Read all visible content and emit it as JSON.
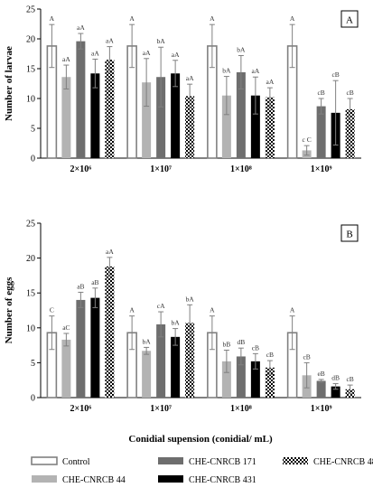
{
  "xlabel": "Conidial supension (conidial/ mL)",
  "colors": {
    "control": "#ffffff",
    "che44": "#b3b3b3",
    "che171": "#6e6e6e",
    "che431": "#000000",
    "che485": "checker",
    "outline": "#808080",
    "error_bar": "#808080"
  },
  "legend": [
    {
      "key": "control",
      "label": "Control"
    },
    {
      "key": "che44",
      "label": "CHE-CNRCB 44"
    },
    {
      "key": "che171",
      "label": "CHE-CNRCB 171"
    },
    {
      "key": "che431",
      "label": "CHE-CNRCB 431"
    },
    {
      "key": "che485",
      "label": "CHE-CNRCB 485"
    }
  ],
  "chart_data": [
    {
      "type": "bar",
      "panel": "A",
      "ylabel": "Number of larvae",
      "ylim": [
        0,
        25
      ],
      "yticks": [
        0,
        5,
        10,
        15,
        20,
        25
      ],
      "categories": [
        "2×10⁶",
        "1×10⁷",
        "1×10⁸",
        "1×10⁹"
      ],
      "series": [
        {
          "name": "Control",
          "key": "control",
          "values": [
            18.8,
            18.8,
            18.8,
            18.8
          ],
          "errors": [
            3.6,
            3.6,
            3.6,
            3.6
          ],
          "labels": [
            "A",
            "A",
            "A",
            "A"
          ]
        },
        {
          "name": "CHE-CNRCB 44",
          "key": "che44",
          "values": [
            13.6,
            12.7,
            10.5,
            1.3
          ],
          "errors": [
            2.0,
            4.0,
            3.2,
            0.8
          ],
          "labels": [
            "aA",
            "aA",
            "bA",
            "c C"
          ]
        },
        {
          "name": "CHE-CNRCB 171",
          "key": "che171",
          "values": [
            19.6,
            13.6,
            14.4,
            8.7
          ],
          "errors": [
            1.3,
            5.0,
            2.8,
            1.3
          ],
          "labels": [
            "aA",
            "bA",
            "bA",
            "cB"
          ]
        },
        {
          "name": "CHE-CNRCB 431",
          "key": "che431",
          "values": [
            14.2,
            14.2,
            10.5,
            7.6
          ],
          "errors": [
            2.4,
            2.2,
            3.1,
            5.4
          ],
          "labels": [
            "aA",
            "aA",
            "aA",
            "cB"
          ]
        },
        {
          "name": "CHE-CNRCB 485",
          "key": "che485",
          "values": [
            16.5,
            10.4,
            10.2,
            8.2
          ],
          "errors": [
            2.2,
            2.0,
            1.6,
            1.8
          ],
          "labels": [
            "aA",
            "aA",
            "aA",
            "cB"
          ]
        }
      ]
    },
    {
      "type": "bar",
      "panel": "B",
      "ylabel": "Number of eggs",
      "ylim": [
        0,
        25
      ],
      "yticks": [
        0,
        5,
        10,
        15,
        20,
        25
      ],
      "categories": [
        "2×10⁶",
        "1×10⁷",
        "1×10⁸",
        "1×10⁹"
      ],
      "series": [
        {
          "name": "Control",
          "key": "control",
          "values": [
            9.3,
            9.3,
            9.3,
            9.3
          ],
          "errors": [
            2.4,
            2.4,
            2.4,
            2.4
          ],
          "labels": [
            "C",
            "A",
            "A",
            "A"
          ]
        },
        {
          "name": "CHE-CNRCB 44",
          "key": "che44",
          "values": [
            8.3,
            6.7,
            5.2,
            3.2
          ],
          "errors": [
            0.9,
            0.5,
            1.6,
            1.8
          ],
          "labels": [
            "aC",
            "bA",
            "bB",
            "cB"
          ]
        },
        {
          "name": "CHE-CNRCB 171",
          "key": "che171",
          "values": [
            14.0,
            10.5,
            5.9,
            2.4
          ],
          "errors": [
            1.1,
            1.8,
            1.2,
            0.2
          ],
          "labels": [
            "aB",
            "cA",
            "dB",
            "eB"
          ]
        },
        {
          "name": "CHE-CNRCB 431",
          "key": "che431",
          "values": [
            14.3,
            8.7,
            5.2,
            1.6
          ],
          "errors": [
            1.4,
            1.2,
            1.1,
            0.4
          ],
          "labels": [
            "aB",
            "bA",
            "cB",
            "dB"
          ]
        },
        {
          "name": "CHE-CNRCB 485",
          "key": "che485",
          "values": [
            18.8,
            10.7,
            4.3,
            1.2
          ],
          "errors": [
            1.3,
            2.6,
            1.0,
            0.6
          ],
          "labels": [
            "aA",
            "bA",
            "cB",
            "cB"
          ]
        }
      ]
    }
  ]
}
